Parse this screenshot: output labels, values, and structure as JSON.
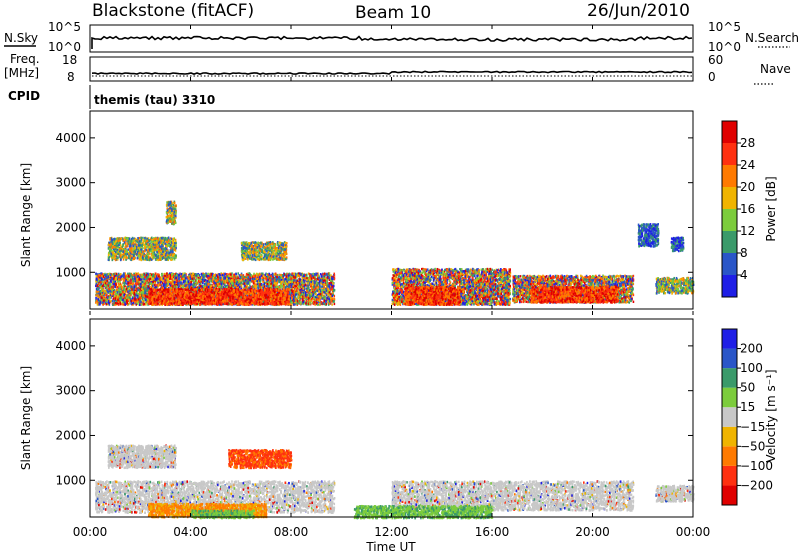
{
  "header": {
    "site": "Blackstone (fitACF)",
    "beam": "Beam 10",
    "date": "26/Jun/2010"
  },
  "top_panels": {
    "nsky_label": "N.Sky",
    "nsky_ticks": [
      "10^5",
      "10^0"
    ],
    "nsearch_ticks": [
      "10^5",
      "10^0"
    ],
    "nsearch_label": "N.Search",
    "freq_label_1": "Freq.",
    "freq_label_2": "[MHz]",
    "freq_ticks": [
      "18",
      "8"
    ],
    "nave_ticks": [
      "60",
      "0"
    ],
    "nave_label": "Nave",
    "cpid_label": "CPID",
    "cpid_value": "themis (tau) 3310"
  },
  "chart_data": [
    {
      "type": "heatmap",
      "panel": "power",
      "ylabel": "Slant Range [km]",
      "yticks": [
        "1000",
        "2000",
        "3000",
        "4000"
      ],
      "ylim": [
        180,
        4600
      ],
      "xlim_hours": [
        0,
        24
      ],
      "colorbar": {
        "label": "Power [dB]",
        "ticks": [
          "4",
          "8",
          "12",
          "16",
          "20",
          "24",
          "28"
        ],
        "colors": [
          "#1f1fe6",
          "#2a56c8",
          "#3a9a6a",
          "#7ccc3c",
          "#f0b400",
          "#ff7a00",
          "#ff3010",
          "#e00000"
        ]
      },
      "scatter_regions": [
        {
          "t": [
            0.7,
            3.4
          ],
          "r": [
            1300,
            1800
          ],
          "band": "mid"
        },
        {
          "t": [
            3.0,
            3.4
          ],
          "r": [
            2100,
            2600
          ],
          "band": "mid"
        },
        {
          "t": [
            6.0,
            7.8
          ],
          "r": [
            1300,
            1700
          ],
          "band": "mid"
        },
        {
          "t": [
            0.2,
            9.7
          ],
          "r": [
            300,
            1000
          ],
          "band": "mixed"
        },
        {
          "t": [
            2.3,
            7.9
          ],
          "r": [
            300,
            650
          ],
          "band": "high"
        },
        {
          "t": [
            12.0,
            16.7
          ],
          "r": [
            300,
            1100
          ],
          "band": "mixed"
        },
        {
          "t": [
            16.8,
            21.6
          ],
          "r": [
            350,
            950
          ],
          "band": "mixed"
        },
        {
          "t": [
            12.5,
            14.7
          ],
          "r": [
            300,
            700
          ],
          "band": "high"
        },
        {
          "t": [
            17.5,
            21.0
          ],
          "r": [
            350,
            700
          ],
          "band": "high"
        },
        {
          "t": [
            22.5,
            24.0
          ],
          "r": [
            550,
            900
          ],
          "band": "mid"
        },
        {
          "t": [
            21.8,
            22.6
          ],
          "r": [
            1600,
            2100
          ],
          "band": "low"
        },
        {
          "t": [
            23.1,
            23.6
          ],
          "r": [
            1500,
            1800
          ],
          "band": "low"
        }
      ]
    },
    {
      "type": "heatmap",
      "panel": "velocity",
      "ylabel": "Slant Range [km]",
      "yticks": [
        "1000",
        "2000",
        "3000",
        "4000"
      ],
      "ylim": [
        180,
        4600
      ],
      "xlim_hours": [
        0,
        24
      ],
      "xticks": [
        "00:00",
        "04:00",
        "08:00",
        "12:00",
        "16:00",
        "20:00",
        "00:00"
      ],
      "xlabel": "Time UT",
      "colorbar": {
        "label": "Velocity [m s⁻¹]",
        "ticks": [
          "200",
          "100",
          "50",
          "15",
          "−15",
          "−50",
          "−100",
          "−200"
        ],
        "colors": [
          "#1f1fe6",
          "#2a56c8",
          "#3a9a6a",
          "#7ccc3c",
          "#c8c8c8",
          "#f0b400",
          "#ff7a00",
          "#ff3010",
          "#e00000"
        ]
      },
      "scatter_regions": [
        {
          "t": [
            0.2,
            9.7
          ],
          "r": [
            300,
            1000
          ],
          "band": "gray"
        },
        {
          "t": [
            0.7,
            3.4
          ],
          "r": [
            1300,
            1800
          ],
          "band": "gray"
        },
        {
          "t": [
            5.5,
            8.0
          ],
          "r": [
            1300,
            1700
          ],
          "band": "red"
        },
        {
          "t": [
            2.3,
            7.0
          ],
          "r": [
            200,
            500
          ],
          "band": "orange"
        },
        {
          "t": [
            4.0,
            6.5
          ],
          "r": [
            180,
            350
          ],
          "band": "green"
        },
        {
          "t": [
            12.0,
            21.6
          ],
          "r": [
            350,
            1000
          ],
          "band": "gray"
        },
        {
          "t": [
            10.5,
            16.0
          ],
          "r": [
            180,
            450
          ],
          "band": "green"
        },
        {
          "t": [
            22.5,
            24.0
          ],
          "r": [
            550,
            900
          ],
          "band": "gray"
        }
      ]
    }
  ]
}
